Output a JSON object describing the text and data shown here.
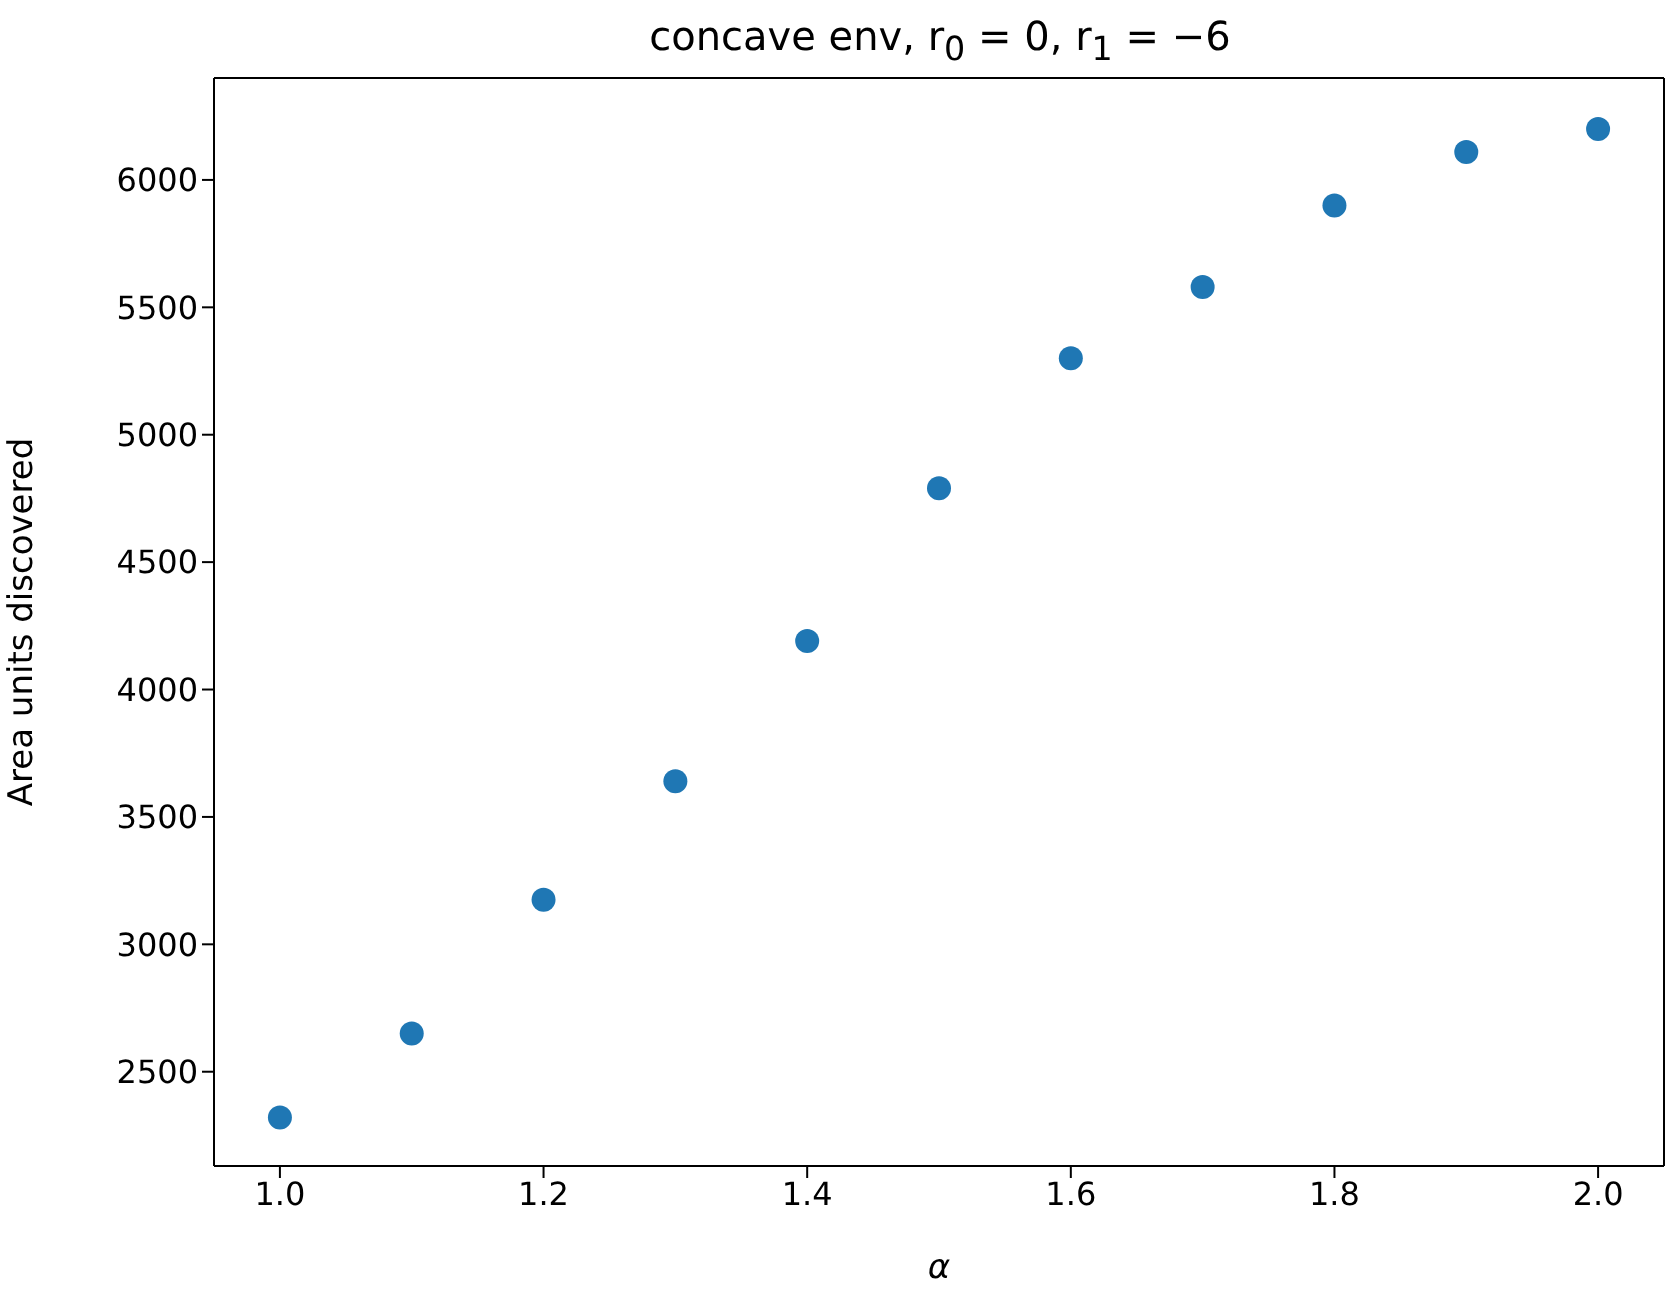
{
  "chart_data": {
    "type": "scatter",
    "title": "concave env, r$_{0}$ = 0, r$_{1}$ = −6",
    "xlabel": "α",
    "ylabel": "Area units discovered",
    "x": [
      1.0,
      1.1,
      1.2,
      1.3,
      1.4,
      1.5,
      1.6,
      1.7,
      1.8,
      1.9,
      2.0
    ],
    "series": [
      {
        "color": "#1f77b4",
        "values": [
          2320,
          2650,
          3175,
          3640,
          4190,
          4790,
          5300,
          5580,
          5900,
          6110,
          6200
        ]
      }
    ],
    "xlim": [
      0.95,
      2.05
    ],
    "xticks": [
      {
        "value": 1.0,
        "label": "1.0"
      },
      {
        "value": 1.2,
        "label": "1.2"
      },
      {
        "value": 1.4,
        "label": "1.4"
      },
      {
        "value": 1.6,
        "label": "1.6"
      },
      {
        "value": 1.8,
        "label": "1.8"
      },
      {
        "value": 2.0,
        "label": "2.0"
      }
    ],
    "ylim": [
      2130,
      6400
    ],
    "yticks": [
      2500,
      3000,
      3500,
      4000,
      4500,
      5000,
      5500,
      6000
    ],
    "marker": "circle",
    "grid": false
  }
}
